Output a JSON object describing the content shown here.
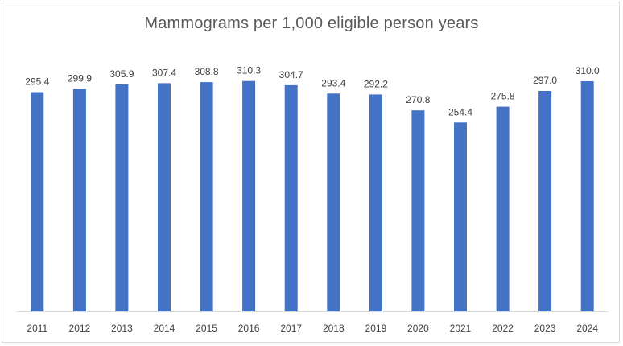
{
  "chart_data": {
    "type": "bar",
    "title": "Mammograms per 1,000 eligible person years",
    "xlabel": "",
    "ylabel": "",
    "categories": [
      "2011",
      "2012",
      "2013",
      "2014",
      "2015",
      "2016",
      "2017",
      "2018",
      "2019",
      "2020",
      "2021",
      "2022",
      "2023",
      "2024"
    ],
    "values": [
      295.4,
      299.9,
      305.9,
      307.4,
      308.8,
      310.3,
      304.7,
      293.4,
      292.2,
      270.8,
      254.4,
      275.8,
      297.0,
      310.0
    ],
    "value_labels": [
      "295.4",
      "299.9",
      "305.9",
      "307.4",
      "308.8",
      "310.3",
      "304.7",
      "293.4",
      "292.2",
      "270.8",
      "254.4",
      "275.8",
      "297.0",
      "310.0"
    ],
    "ylim": [
      0,
      350
    ],
    "grid": false,
    "legend": "none",
    "bar_color": "#4472c4",
    "axis_color": "#d9d9d9"
  }
}
